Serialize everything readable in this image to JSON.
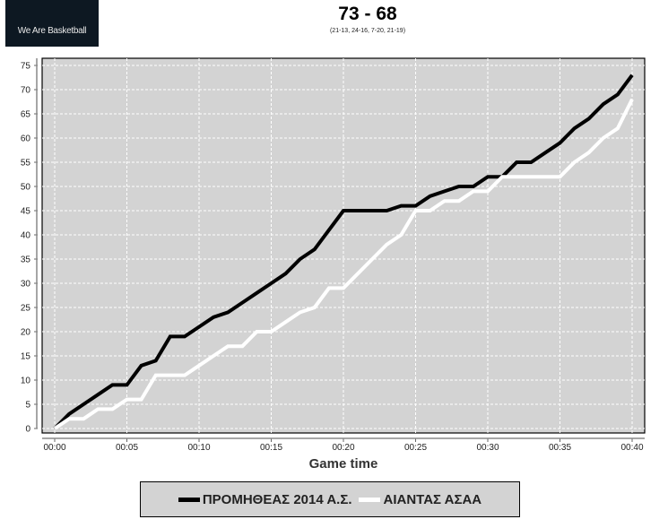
{
  "header": {
    "logo_text": "We Are Basketball",
    "score": "73 - 68",
    "quarters": "(21-13, 24-16, 7-20, 21-19)"
  },
  "chart_data": {
    "type": "line",
    "xlabel": "Game time",
    "ylabel": "",
    "xlim": [
      0,
      40
    ],
    "ylim": [
      0,
      75
    ],
    "x_ticks": [
      "00:00",
      "00:05",
      "00:10",
      "00:15",
      "00:20",
      "00:25",
      "00:30",
      "00:35",
      "00:40"
    ],
    "y_ticks": [
      0,
      5,
      10,
      15,
      20,
      25,
      30,
      35,
      40,
      45,
      50,
      55,
      60,
      65,
      70,
      75
    ],
    "grid": true,
    "background": "#d3d3d3",
    "legend_position": "bottom",
    "x": [
      0,
      1,
      2,
      3,
      4,
      5,
      6,
      7,
      8,
      9,
      10,
      11,
      12,
      13,
      14,
      15,
      16,
      17,
      18,
      19,
      20,
      21,
      22,
      23,
      24,
      25,
      26,
      27,
      28,
      29,
      30,
      31,
      32,
      33,
      34,
      35,
      36,
      37,
      38,
      39,
      40
    ],
    "series": [
      {
        "name": "ΠΡΟΜΗΘΕΑΣ 2014 Α.Σ.",
        "color": "#000000",
        "values": [
          0,
          3,
          5,
          7,
          9,
          9,
          13,
          14,
          19,
          19,
          21,
          23,
          24,
          26,
          28,
          30,
          32,
          35,
          37,
          41,
          45,
          45,
          45,
          45,
          46,
          46,
          48,
          49,
          50,
          50,
          52,
          52,
          55,
          55,
          57,
          59,
          62,
          64,
          67,
          69,
          73
        ]
      },
      {
        "name": "ΑΙΑΝΤΑΣ ΑΣΑΑ",
        "color": "#ffffff",
        "values": [
          0,
          2,
          2,
          4,
          4,
          6,
          6,
          11,
          11,
          11,
          13,
          15,
          17,
          17,
          20,
          20,
          22,
          24,
          25,
          29,
          29,
          32,
          35,
          38,
          40,
          45,
          45,
          47,
          47,
          49,
          49,
          52,
          52,
          52,
          52,
          52,
          55,
          57,
          60,
          62,
          68
        ]
      }
    ]
  }
}
